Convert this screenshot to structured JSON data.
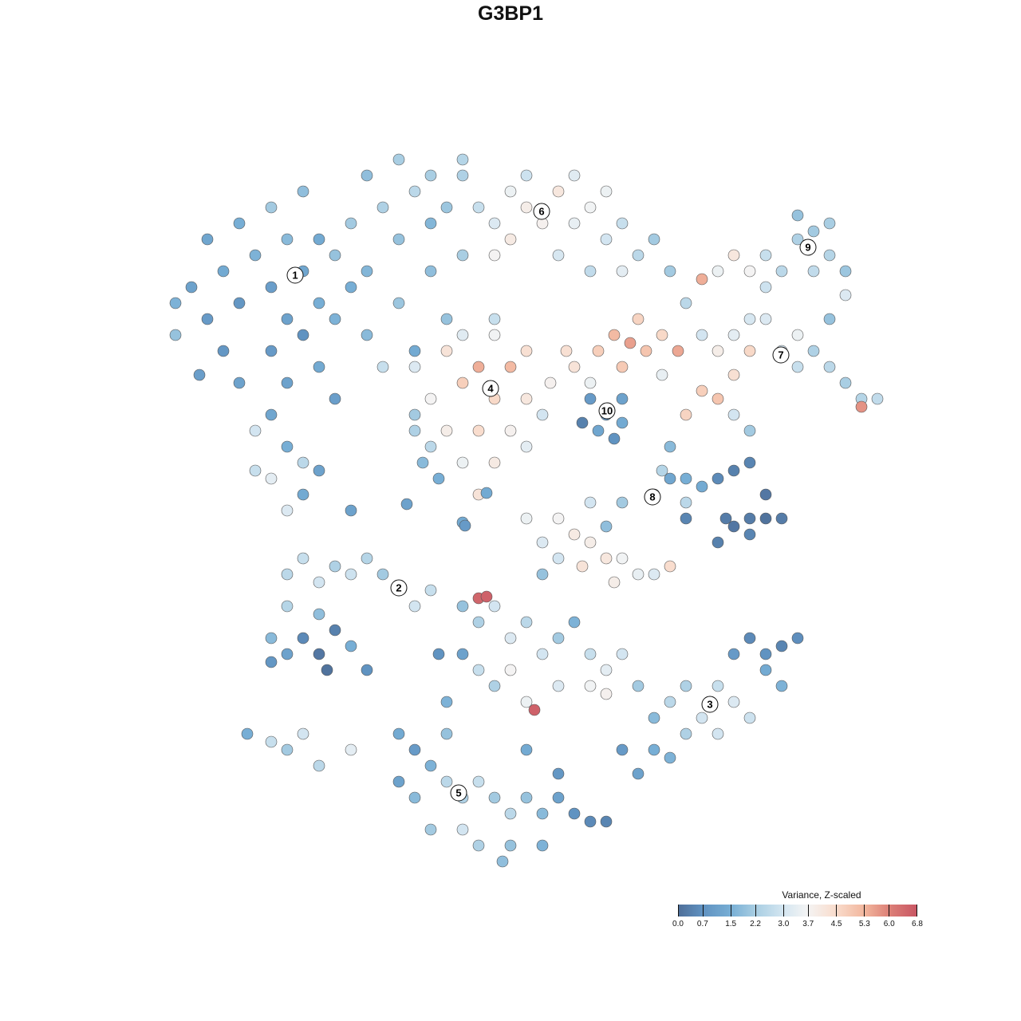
{
  "chart_data": {
    "type": "scatter",
    "title": "G3BP1",
    "xlabel": "",
    "ylabel": "",
    "grid": false,
    "legend": {
      "title": "Variance, Z-scaled",
      "placement": "bottom-right",
      "ticks": [
        "0.0",
        "0.7",
        "1.5",
        "2.2",
        "3.0",
        "3.7",
        "4.5",
        "5.3",
        "6.0",
        "6.8"
      ],
      "range": [
        0,
        6.8
      ],
      "colors": [
        "#4e6e98",
        "#5f91c0",
        "#77aed5",
        "#a7cde2",
        "#d4e6f1",
        "#f4f4f4",
        "#f9dccc",
        "#f2b69d",
        "#dd8178",
        "#c85563"
      ]
    },
    "cluster_labels": [
      {
        "label": "1",
        "x": -27,
        "y": 29.5
      },
      {
        "label": "6",
        "x": 3.9,
        "y": 37.5
      },
      {
        "label": "9",
        "x": 37.3,
        "y": 33
      },
      {
        "label": "7",
        "x": 33.9,
        "y": 19.5
      },
      {
        "label": "4",
        "x": -2.5,
        "y": 15.3
      },
      {
        "label": "10",
        "x": 12.1,
        "y": 12.5
      },
      {
        "label": "8",
        "x": 17.8,
        "y": 1.7
      },
      {
        "label": "2",
        "x": -14,
        "y": -9.7
      },
      {
        "label": "3",
        "x": 25,
        "y": -24.3
      },
      {
        "label": "5",
        "x": -6.5,
        "y": -35.4
      }
    ],
    "points": [
      [
        -40,
        28,
        1.2
      ],
      [
        -38,
        24,
        1.0
      ],
      [
        -36,
        30,
        1.4
      ],
      [
        -34,
        26,
        0.9
      ],
      [
        -32,
        32,
        1.6
      ],
      [
        -30,
        28,
        1.1
      ],
      [
        -28,
        34,
        1.8
      ],
      [
        -26,
        30,
        1.3
      ],
      [
        -24,
        26,
        1.5
      ],
      [
        -22,
        32,
        2.0
      ],
      [
        -20,
        36,
        2.2
      ],
      [
        -18,
        30,
        1.7
      ],
      [
        -16,
        38,
        2.4
      ],
      [
        -14,
        34,
        2.0
      ],
      [
        -12,
        40,
        2.6
      ],
      [
        -10,
        42,
        2.3
      ],
      [
        -8,
        38,
        2.1
      ],
      [
        -6,
        44,
        2.5
      ],
      [
        -30,
        20,
        1.0
      ],
      [
        -28,
        16,
        1.2
      ],
      [
        -26,
        22,
        0.8
      ],
      [
        -24,
        18,
        1.4
      ],
      [
        -22,
        14,
        1.1
      ],
      [
        -30,
        12,
        1.3
      ],
      [
        -28,
        8,
        1.5
      ],
      [
        -26,
        6,
        2.6
      ],
      [
        -32,
        10,
        3.0
      ],
      [
        -34,
        16,
        1.2
      ],
      [
        -36,
        20,
        0.9
      ],
      [
        -42,
        22,
        2.0
      ],
      [
        -42,
        26,
        1.6
      ],
      [
        -38,
        34,
        1.3
      ],
      [
        -34,
        36,
        1.5
      ],
      [
        -30,
        38,
        2.2
      ],
      [
        -26,
        40,
        1.9
      ],
      [
        -22,
        24,
        1.6
      ],
      [
        -18,
        22,
        1.8
      ],
      [
        -14,
        26,
        2.1
      ],
      [
        -12,
        20,
        1.4
      ],
      [
        -16,
        18,
        2.8
      ],
      [
        -20,
        28,
        1.5
      ],
      [
        -10,
        30,
        1.9
      ],
      [
        -6,
        32,
        2.3
      ],
      [
        -8,
        24,
        2.0
      ],
      [
        -12,
        10,
        2.4
      ],
      [
        -26,
        2,
        1.4
      ],
      [
        -30,
        4,
        3.4
      ],
      [
        -28,
        0,
        3.2
      ],
      [
        -32,
        5,
        2.8
      ],
      [
        -24,
        5,
        1.2
      ],
      [
        -39,
        17,
        1.1
      ],
      [
        -28,
        24,
        1.2
      ],
      [
        -24,
        34,
        1.4
      ],
      [
        -18,
        42,
        1.9
      ],
      [
        -14,
        44,
        2.3
      ],
      [
        -10,
        36,
        1.7
      ],
      [
        -4,
        38,
        2.8
      ],
      [
        -2,
        36,
        3.2
      ],
      [
        0,
        40,
        3.6
      ],
      [
        2,
        38,
        4.0
      ],
      [
        4,
        36,
        3.9
      ],
      [
        6,
        40,
        4.2
      ],
      [
        8,
        36,
        3.5
      ],
      [
        10,
        38,
        3.7
      ],
      [
        12,
        34,
        3.0
      ],
      [
        14,
        36,
        2.8
      ],
      [
        16,
        32,
        2.6
      ],
      [
        18,
        34,
        2.2
      ],
      [
        -6,
        42,
        2.4
      ],
      [
        2,
        42,
        2.9
      ],
      [
        6,
        32,
        3.1
      ],
      [
        10,
        30,
        2.7
      ],
      [
        -2,
        32,
        3.8
      ],
      [
        20,
        30,
        2.2
      ],
      [
        0,
        34,
        4.1
      ],
      [
        8,
        42,
        3.3
      ],
      [
        14,
        30,
        3.4
      ],
      [
        12,
        40,
        3.6
      ],
      [
        -12,
        18,
        3.2
      ],
      [
        -10,
        14,
        3.8
      ],
      [
        -8,
        20,
        4.3
      ],
      [
        -6,
        16,
        4.8
      ],
      [
        -4,
        18,
        5.4
      ],
      [
        -2,
        14,
        4.6
      ],
      [
        0,
        18,
        5.2
      ],
      [
        2,
        14,
        4.2
      ],
      [
        -8,
        10,
        4.0
      ],
      [
        -4,
        10,
        4.5
      ],
      [
        0,
        10,
        3.9
      ],
      [
        -6,
        6,
        3.6
      ],
      [
        -2,
        6,
        4.1
      ],
      [
        2,
        8,
        3.4
      ],
      [
        -10,
        8,
        2.6
      ],
      [
        -12,
        12,
        2.2
      ],
      [
        -6,
        22,
        3.3
      ],
      [
        -2,
        22,
        3.7
      ],
      [
        2,
        20,
        4.4
      ],
      [
        4,
        12,
        3.0
      ],
      [
        -9,
        4,
        1.5
      ],
      [
        -4,
        2,
        4.3
      ],
      [
        -11,
        6,
        1.8
      ],
      [
        -2,
        24,
        2.8
      ],
      [
        5,
        16,
        3.9
      ],
      [
        8,
        18,
        4.3
      ],
      [
        11,
        20,
        4.8
      ],
      [
        13,
        22,
        5.2
      ],
      [
        15,
        21,
        5.6
      ],
      [
        17,
        20,
        5.0
      ],
      [
        19,
        22,
        4.6
      ],
      [
        7,
        20,
        4.4
      ],
      [
        10,
        16,
        3.6
      ],
      [
        14,
        18,
        4.9
      ],
      [
        16,
        24,
        4.7
      ],
      [
        21,
        20,
        5.5
      ],
      [
        19,
        17,
        3.5
      ],
      [
        10,
        14,
        1.0
      ],
      [
        12,
        12,
        0.9
      ],
      [
        14,
        14,
        1.2
      ],
      [
        11,
        10,
        1.3
      ],
      [
        13,
        9,
        0.8
      ],
      [
        9,
        11,
        0.4
      ],
      [
        14,
        11,
        1.4
      ],
      [
        22,
        26,
        2.6
      ],
      [
        24,
        22,
        3.0
      ],
      [
        26,
        20,
        4.0
      ],
      [
        28,
        22,
        3.4
      ],
      [
        30,
        20,
        4.6
      ],
      [
        32,
        24,
        3.2
      ],
      [
        34,
        20,
        3.0
      ],
      [
        36,
        18,
        2.8
      ],
      [
        38,
        20,
        2.4
      ],
      [
        40,
        18,
        2.6
      ],
      [
        42,
        16,
        2.3
      ],
      [
        44,
        14,
        2.5
      ],
      [
        46,
        14,
        2.7
      ],
      [
        24,
        15,
        4.8
      ],
      [
        26,
        14,
        5.0
      ],
      [
        22,
        12,
        4.7
      ],
      [
        28,
        17,
        4.4
      ],
      [
        30,
        24,
        3.1
      ],
      [
        36,
        22,
        3.6
      ],
      [
        44,
        13,
        5.8
      ],
      [
        20,
        8,
        1.8
      ],
      [
        19,
        5,
        2.5
      ],
      [
        22,
        4,
        1.5
      ],
      [
        28,
        12,
        3.0
      ],
      [
        30,
        10,
        2.2
      ],
      [
        26,
        30,
        3.6
      ],
      [
        28,
        32,
        4.2
      ],
      [
        30,
        30,
        3.8
      ],
      [
        32,
        32,
        2.8
      ],
      [
        34,
        30,
        2.6
      ],
      [
        36,
        34,
        2.4
      ],
      [
        38,
        35,
        2.2
      ],
      [
        40,
        32,
        2.5
      ],
      [
        42,
        30,
        2.1
      ],
      [
        38,
        30,
        2.7
      ],
      [
        40,
        36,
        2.3
      ],
      [
        36,
        37,
        2.0
      ],
      [
        24,
        29,
        5.4
      ],
      [
        32,
        28,
        2.9
      ],
      [
        42,
        27,
        3.2
      ],
      [
        40,
        24,
        2.0
      ],
      [
        18,
        2,
        1.8
      ],
      [
        20,
        4,
        1.3
      ],
      [
        22,
        1,
        2.6
      ],
      [
        24,
        3,
        1.4
      ],
      [
        26,
        4,
        0.6
      ],
      [
        28,
        5,
        0.4
      ],
      [
        30,
        6,
        0.5
      ],
      [
        32,
        2,
        0.2
      ],
      [
        30,
        -1,
        0.3
      ],
      [
        28,
        -2,
        0.2
      ],
      [
        26,
        -4,
        0.4
      ],
      [
        30,
        -3,
        0.5
      ],
      [
        32,
        -1,
        0.1
      ],
      [
        34,
        -1,
        0.3
      ],
      [
        27,
        -1,
        0.3
      ],
      [
        22,
        -1,
        0.5
      ],
      [
        14,
        1,
        2.2
      ],
      [
        10,
        1,
        3.0
      ],
      [
        6,
        -1,
        3.8
      ],
      [
        8,
        -3,
        4.1
      ],
      [
        10,
        -4,
        4.0
      ],
      [
        12,
        -2,
        1.9
      ],
      [
        2,
        -1,
        3.6
      ],
      [
        4,
        -4,
        3.2
      ],
      [
        6,
        -6,
        3.0
      ],
      [
        12,
        -6,
        4.2
      ],
      [
        14,
        -6,
        3.7
      ],
      [
        9,
        -7,
        4.3
      ],
      [
        13,
        -9,
        4.0
      ],
      [
        16,
        -8,
        3.5
      ],
      [
        18,
        -8,
        3.2
      ],
      [
        20,
        -7,
        4.5
      ],
      [
        4,
        -8,
        2.0
      ],
      [
        -28,
        -8,
        2.6
      ],
      [
        -26,
        -6,
        2.8
      ],
      [
        -24,
        -9,
        3.0
      ],
      [
        -22,
        -7,
        2.4
      ],
      [
        -20,
        -8,
        2.9
      ],
      [
        -18,
        -6,
        2.5
      ],
      [
        -16,
        -8,
        2.2
      ],
      [
        -14,
        -10,
        1.8
      ],
      [
        -12,
        -12,
        3.0
      ],
      [
        -10,
        -10,
        2.8
      ],
      [
        -28,
        -12,
        2.5
      ],
      [
        -24,
        -13,
        1.9
      ],
      [
        -30,
        -16,
        1.8
      ],
      [
        -28,
        -18,
        1.2
      ],
      [
        -26,
        -16,
        0.6
      ],
      [
        -24,
        -18,
        0.2
      ],
      [
        -23,
        -20,
        0.1
      ],
      [
        -30,
        -19,
        0.9
      ],
      [
        -22,
        -15,
        0.4
      ],
      [
        -20,
        -17,
        1.5
      ],
      [
        -18,
        -20,
        0.8
      ],
      [
        -33,
        -28,
        1.5
      ],
      [
        -30,
        -29,
        2.8
      ],
      [
        -28,
        -30,
        2.2
      ],
      [
        -26,
        -28,
        3.0
      ],
      [
        -24,
        -32,
        2.6
      ],
      [
        -20,
        -30,
        3.4
      ],
      [
        -6,
        -12,
        2.0
      ],
      [
        -4,
        -14,
        2.4
      ],
      [
        -2,
        -12,
        3.0
      ],
      [
        0,
        -16,
        3.2
      ],
      [
        2,
        -14,
        2.6
      ],
      [
        4,
        -18,
        3.0
      ],
      [
        6,
        -16,
        2.2
      ],
      [
        8,
        -14,
        1.6
      ],
      [
        10,
        -18,
        2.8
      ],
      [
        12,
        -20,
        3.4
      ],
      [
        14,
        -18,
        3.0
      ],
      [
        -4,
        -20,
        2.8
      ],
      [
        -2,
        -22,
        2.4
      ],
      [
        2,
        -24,
        3.6
      ],
      [
        6,
        -22,
        3.2
      ],
      [
        -8,
        -24,
        1.6
      ],
      [
        -6,
        -18,
        1.2
      ],
      [
        10,
        -22,
        3.7
      ],
      [
        -4,
        -11,
        6.5
      ],
      [
        -3,
        -10.8,
        6.6
      ],
      [
        3,
        -25,
        6.6
      ],
      [
        0,
        -20,
        3.8
      ],
      [
        12,
        -23,
        3.9
      ],
      [
        -9,
        -18,
        0.8
      ],
      [
        16,
        -22,
        2.2
      ],
      [
        18,
        -26,
        1.8
      ],
      [
        20,
        -24,
        2.6
      ],
      [
        22,
        -22,
        2.4
      ],
      [
        24,
        -26,
        3.0
      ],
      [
        26,
        -22,
        2.8
      ],
      [
        28,
        -24,
        3.2
      ],
      [
        30,
        -26,
        2.9
      ],
      [
        26,
        -28,
        3.0
      ],
      [
        22,
        -28,
        2.4
      ],
      [
        28,
        -18,
        1.0
      ],
      [
        30,
        -16,
        0.6
      ],
      [
        32,
        -18,
        0.8
      ],
      [
        34,
        -17,
        0.5
      ],
      [
        36,
        -16,
        0.7
      ],
      [
        32,
        -20,
        1.4
      ],
      [
        34,
        -22,
        1.6
      ],
      [
        18,
        -30,
        1.5
      ],
      [
        16,
        -33,
        1.2
      ],
      [
        14,
        -30,
        1.0
      ],
      [
        20,
        -31,
        1.6
      ],
      [
        -14,
        -28,
        1.4
      ],
      [
        -12,
        -30,
        1.0
      ],
      [
        -10,
        -32,
        1.6
      ],
      [
        -8,
        -34,
        2.6
      ],
      [
        -6,
        -36,
        2.4
      ],
      [
        -4,
        -34,
        2.8
      ],
      [
        -2,
        -36,
        2.2
      ],
      [
        0,
        -38,
        2.6
      ],
      [
        2,
        -36,
        2.0
      ],
      [
        4,
        -38,
        1.8
      ],
      [
        6,
        -36,
        1.2
      ],
      [
        8,
        -38,
        0.8
      ],
      [
        10,
        -39,
        0.6
      ],
      [
        12,
        -39,
        0.5
      ],
      [
        -12,
        -36,
        1.8
      ],
      [
        -10,
        -40,
        2.2
      ],
      [
        -6,
        -40,
        3.0
      ],
      [
        -4,
        -42,
        2.4
      ],
      [
        0,
        -42,
        2.0
      ],
      [
        4,
        -42,
        1.6
      ],
      [
        -8,
        -28,
        2.0
      ],
      [
        -14,
        -34,
        1.2
      ],
      [
        2,
        -30,
        1.4
      ],
      [
        -1,
        -44,
        1.9
      ],
      [
        6,
        -33,
        0.9
      ],
      [
        -20,
        0,
        1.2
      ],
      [
        -13,
        0.8,
        1.2
      ],
      [
        -6,
        -1.5,
        1.4
      ],
      [
        -5.7,
        -1.9,
        1.0
      ],
      [
        -3,
        2.2,
        1.4
      ]
    ]
  }
}
